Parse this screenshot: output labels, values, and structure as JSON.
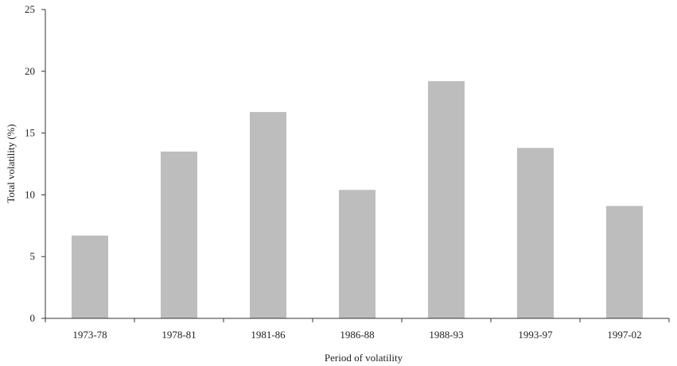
{
  "chart_data": {
    "type": "bar",
    "title": "",
    "xlabel": "Period of volatility",
    "ylabel": "Total volatility (%)",
    "ylim": [
      0,
      25
    ],
    "yticks": [
      0,
      5,
      10,
      15,
      20,
      25
    ],
    "grid": false,
    "categories": [
      "1973-78",
      "1978-81",
      "1981-86",
      "1986-88",
      "1988-93",
      "1993-97",
      "1997-02"
    ],
    "values": [
      6.7,
      13.5,
      16.7,
      10.4,
      19.2,
      13.8,
      9.1
    ],
    "colors": {
      "bar": "#bdbdbd",
      "axis": "#333333"
    }
  }
}
